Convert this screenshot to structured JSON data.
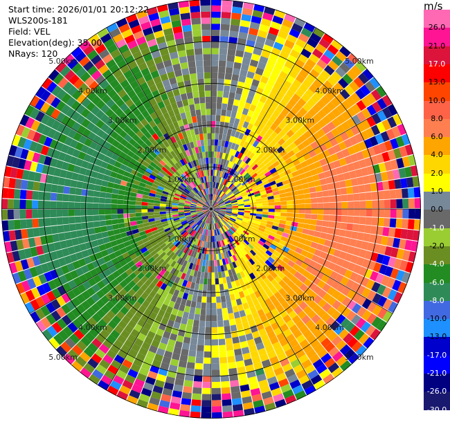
{
  "info": {
    "start_time": "Start time: 2026/01/01 20:12:22",
    "instrument": "WLS200s-181",
    "field": "Field: VEL",
    "elevation": "Elevation(deg): 35.00",
    "nrays": "NRays: 120"
  },
  "chart_data": {
    "type": "heatmap",
    "projection": "polar (PPI scan)",
    "field": "VEL",
    "nrays": 120,
    "range_ring_labels": [
      "1.00km",
      "2.00km",
      "3.00km",
      "4.00km",
      "5.00km"
    ],
    "colorbar": {
      "unit": "m/s",
      "levels": [
        26.0,
        21.0,
        17.0,
        13.0,
        10.0,
        8.0,
        6.0,
        4.0,
        2.0,
        1.0,
        0.0,
        -1.0,
        -2.0,
        -4.0,
        -6.0,
        -8.0,
        -10.0,
        -13.0,
        -17.0,
        -21.0,
        -26.0,
        -30.0
      ],
      "labels": [
        "26.0",
        "21.0",
        "17.0",
        "13.0",
        "10.0",
        "8.0",
        "6.0",
        "4.0",
        "2.0",
        "1.0",
        "0.0",
        "-1.0",
        "-2.0",
        "-4.0",
        "-6.0",
        "-8.0",
        "-10.0",
        "-13.0",
        "-17.0",
        "-21.0",
        "-26.0",
        "-30.0"
      ],
      "colors": [
        "#ff69b4",
        "#ff1493",
        "#dc143c",
        "#ff0000",
        "#ff4500",
        "#ff6347",
        "#ff7f50",
        "#ffa500",
        "#ffd700",
        "#ffff00",
        "#778899",
        "#696969",
        "#9acd32",
        "#6b8e23",
        "#228b22",
        "#2e8b57",
        "#4169e1",
        "#1e90ff",
        "#0000cd",
        "#0000ff",
        "#000080",
        "#191970"
      ]
    }
  },
  "colors": {
    "ring_line": "#000000",
    "gap_line": "#ffffff"
  }
}
